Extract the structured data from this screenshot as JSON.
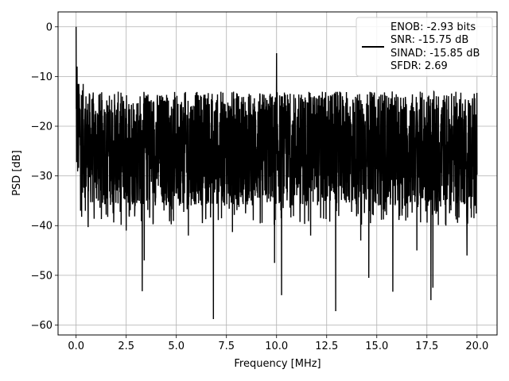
{
  "chart_data": {
    "type": "line",
    "title": "",
    "xlabel": "Frequency [MHz]",
    "ylabel": "PSD [dB]",
    "xlim": [
      -0.9,
      21.0
    ],
    "ylim": [
      -62.0,
      3.0
    ],
    "xticks": [
      0.0,
      2.5,
      5.0,
      7.5,
      10.0,
      12.5,
      15.0,
      17.5,
      20.0
    ],
    "xtick_labels": [
      "0.0",
      "2.5",
      "5.0",
      "7.5",
      "10.0",
      "12.5",
      "15.0",
      "17.5",
      "20.0"
    ],
    "yticks": [
      0,
      -10,
      -20,
      -30,
      -40,
      -50,
      -60
    ],
    "ytick_labels": [
      "0",
      "−10",
      "−20",
      "−30",
      "−40",
      "−50",
      "−60"
    ],
    "grid": true,
    "legend": {
      "placement": "top-right",
      "lines": [
        "ENOB: -2.93 bits",
        "SNR: -15.75 dB",
        "SINAD: -15.85 dB",
        "SFDR: 2.69"
      ]
    },
    "series": [
      {
        "color": "#000000",
        "x_range": [
          0.0,
          20.0
        ],
        "noise_band_db": [
          -36,
          -13
        ],
        "peaks": [
          {
            "x": 0.0,
            "y": 0.0
          },
          {
            "x": 0.05,
            "y": -8.0
          },
          {
            "x": 10.0,
            "y": -5.3
          }
        ],
        "dips": [
          {
            "x": 0.6,
            "y": -40.3
          },
          {
            "x": 1.5,
            "y": -37.8
          },
          {
            "x": 2.5,
            "y": -41.0
          },
          {
            "x": 3.3,
            "y": -53.2
          },
          {
            "x": 3.4,
            "y": -47.0
          },
          {
            "x": 5.6,
            "y": -42.0
          },
          {
            "x": 6.85,
            "y": -58.8
          },
          {
            "x": 7.8,
            "y": -41.3
          },
          {
            "x": 9.9,
            "y": -47.5
          },
          {
            "x": 10.25,
            "y": -54.0
          },
          {
            "x": 11.7,
            "y": -42.0
          },
          {
            "x": 12.95,
            "y": -57.2
          },
          {
            "x": 14.2,
            "y": -43.0
          },
          {
            "x": 14.6,
            "y": -50.5
          },
          {
            "x": 15.8,
            "y": -53.3
          },
          {
            "x": 17.0,
            "y": -45.0
          },
          {
            "x": 17.7,
            "y": -55.0
          },
          {
            "x": 17.8,
            "y": -52.5
          },
          {
            "x": 19.5,
            "y": -46.0
          },
          {
            "x": 19.9,
            "y": -36.0
          }
        ]
      }
    ]
  }
}
